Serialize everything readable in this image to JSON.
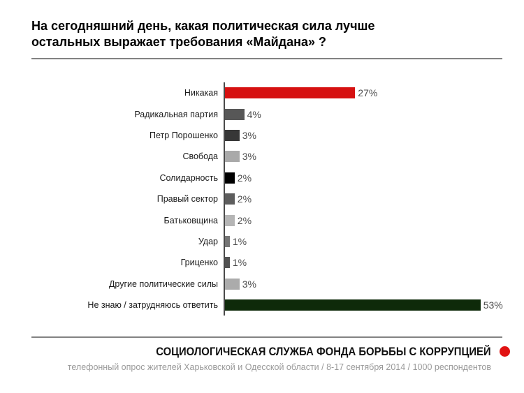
{
  "header": {
    "title": "На сегодняшний день, какая политическая сила лучше остальных выражает требования «Майдана» ?"
  },
  "chart_data": {
    "type": "bar",
    "orientation": "horizontal",
    "title": "На сегодняшний день, какая политическая сила лучше остальных выражает требования «Майдана» ?",
    "categories": [
      "Никакая",
      "Радикальная партия",
      "Петр Порошенко",
      "Свобода",
      "Солидарность",
      "Правый сектор",
      "Батьковщина",
      "Удар",
      "Гриценко",
      "Другие политические силы",
      "Не знаю / затрудняюсь ответить"
    ],
    "values": [
      27,
      4,
      3,
      3,
      2,
      2,
      2,
      1,
      1,
      3,
      53
    ],
    "value_labels": [
      "27%",
      "4%",
      "3%",
      "3%",
      "2%",
      "2%",
      "2%",
      "1%",
      "1%",
      "3%",
      "53%"
    ],
    "bar_colors": [
      "#d61111",
      "#575757",
      "#373737",
      "#a9a9a9",
      "#000000",
      "#5d5d5d",
      "#b5b5b5",
      "#757575",
      "#525252",
      "#ababab",
      "#0e2a0a"
    ],
    "xlim": [
      0,
      55
    ],
    "grid": false,
    "legend": false
  },
  "footer": {
    "org": "СОЦИОЛОГИЧЕСКАЯ СЛУЖБА ФОНДА БОРЬБЫ С КОРРУПЦИЕЙ",
    "details": "телефонный опрос жителей Харьковской и Одесской области / 8-17 сентября 2014 / 1000 респондентов",
    "dot_color": "#e11212"
  }
}
